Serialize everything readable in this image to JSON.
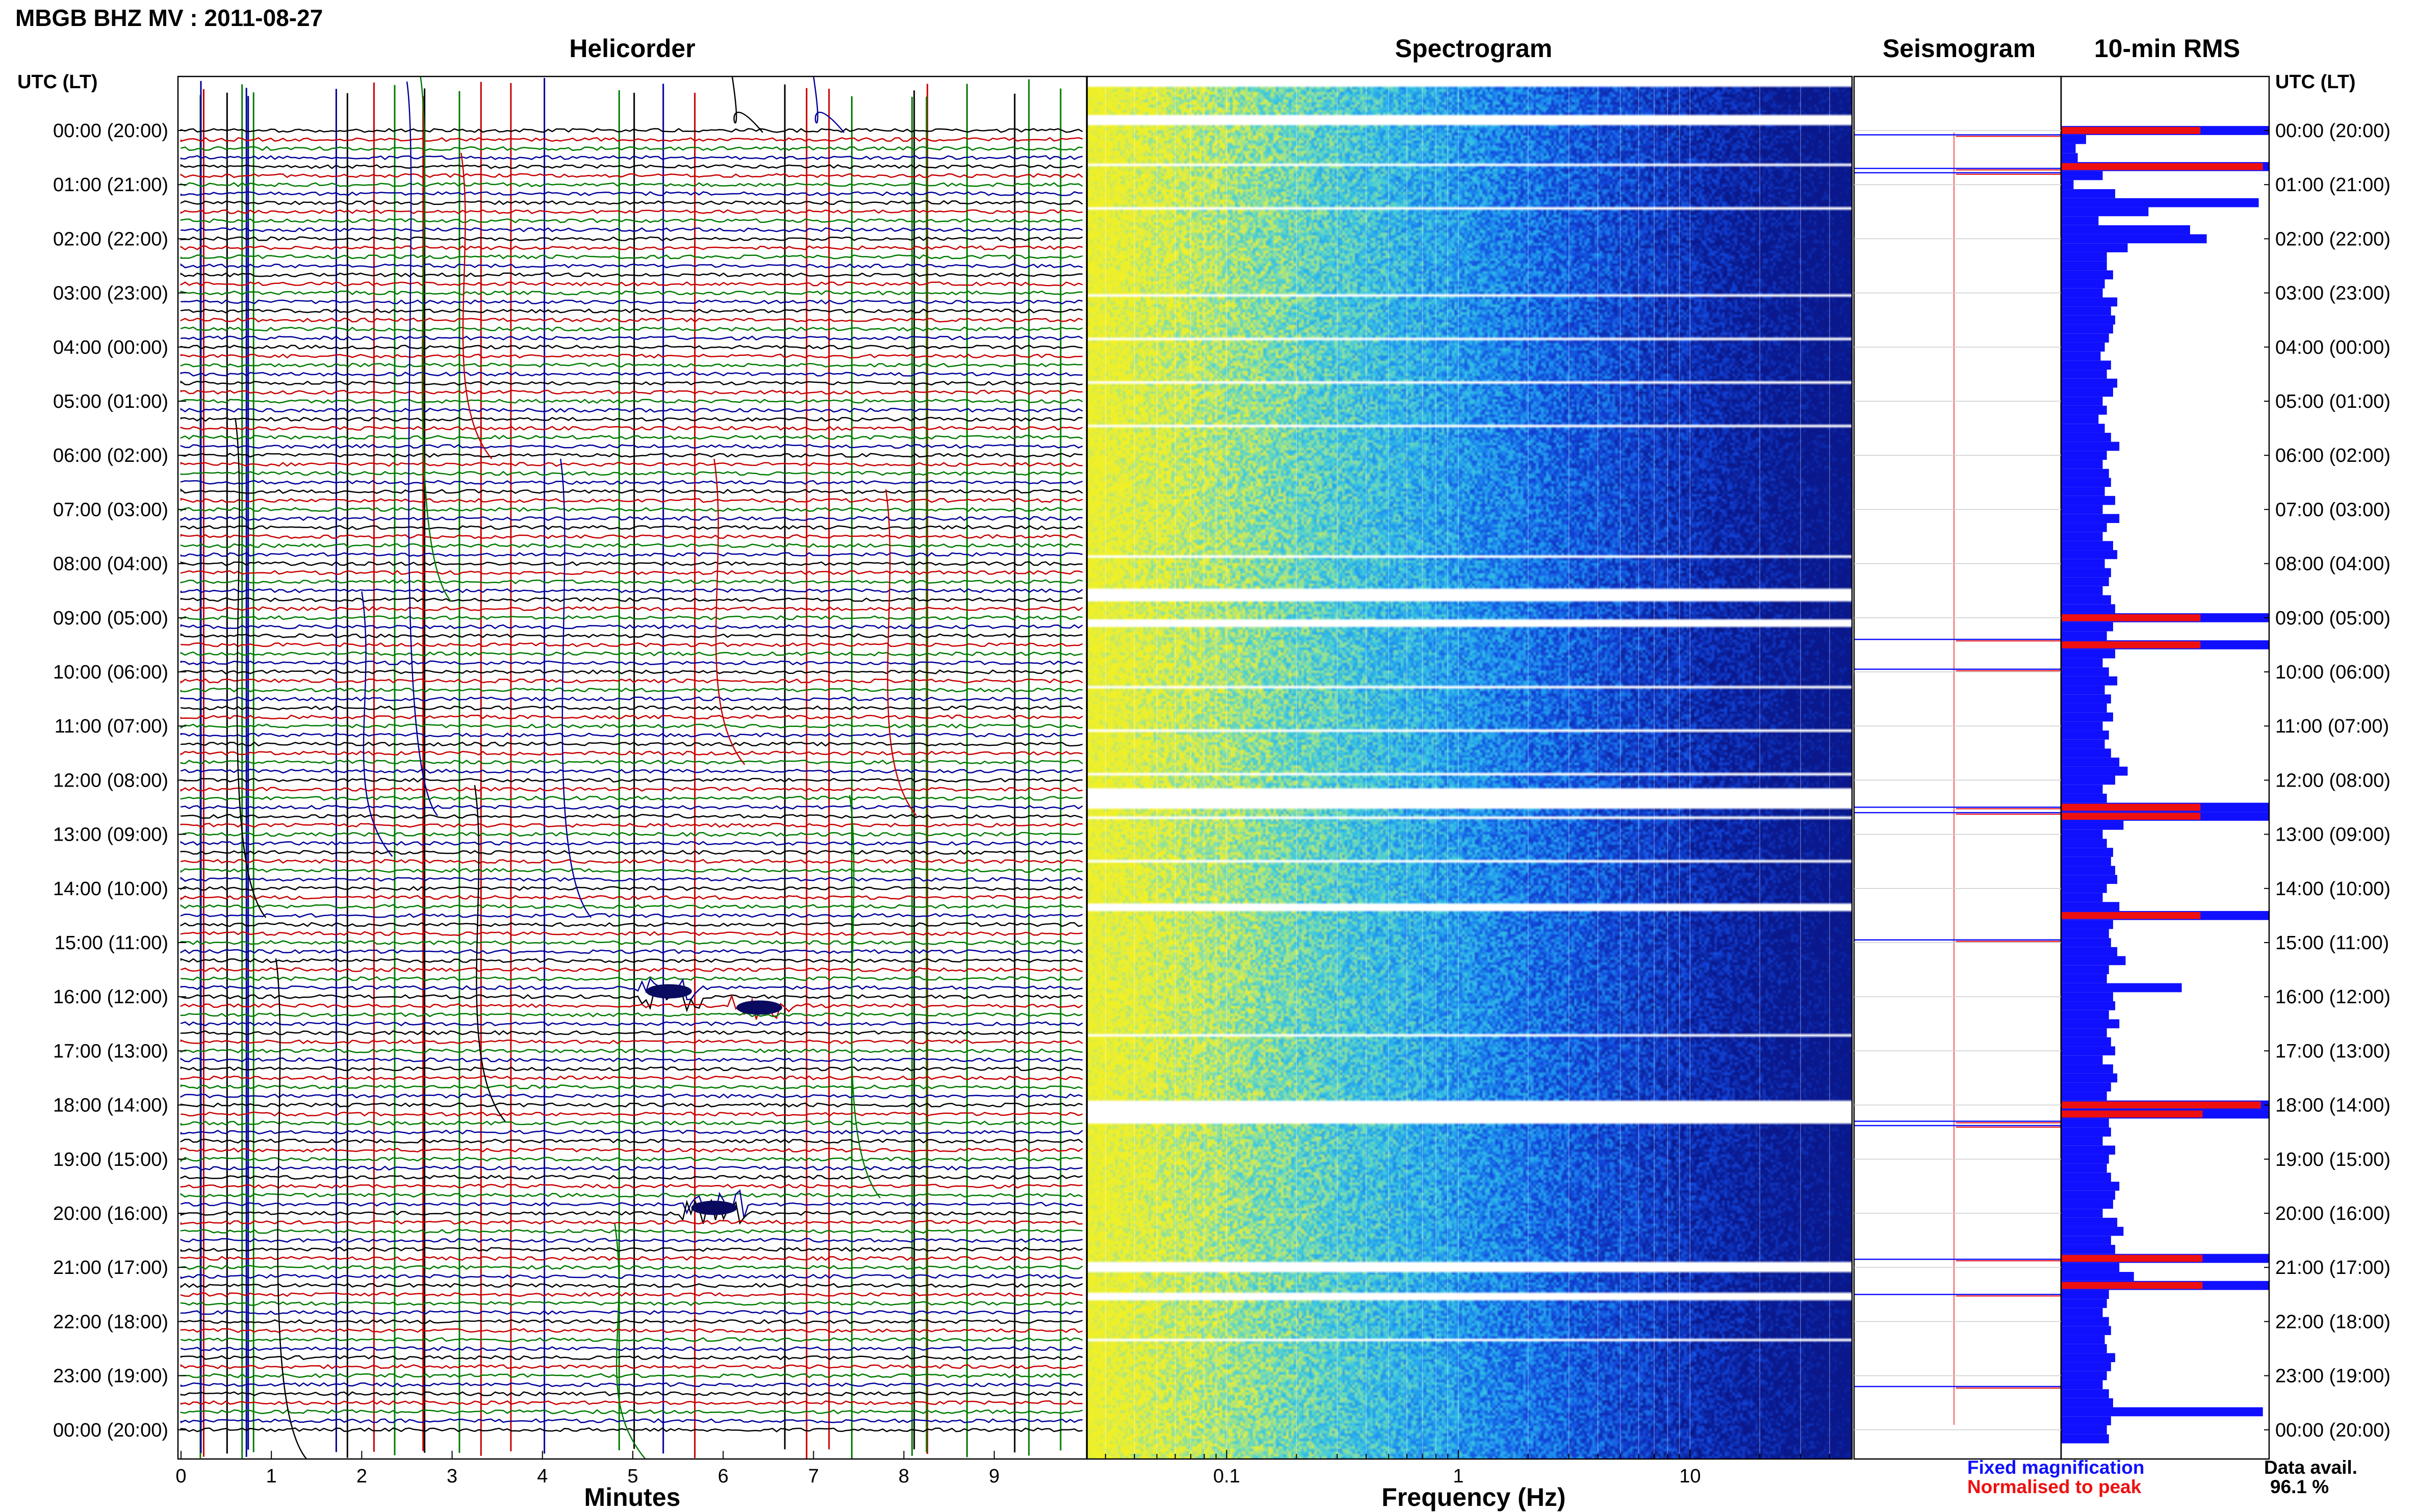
{
  "header": {
    "title": "MBGB BHZ MV : 2011-08-27",
    "panels": {
      "helicorder": "Helicorder",
      "spectrogram": "Spectrogram",
      "seismogram": "Seismogram",
      "rms": "10-min RMS"
    },
    "utc_label": "UTC (LT)"
  },
  "footer": {
    "helicorder_xlabel": "Minutes",
    "spectrogram_xlabel": "Frequency (Hz)",
    "legend_fixed": "Fixed magnification",
    "legend_normalised": "Normalised to peak",
    "data_avail_label": "Data avail.",
    "data_avail_value": "96.1 %"
  },
  "colors": {
    "trace_cycle": [
      "#000000",
      "#c80000",
      "#007a00",
      "#00009a"
    ],
    "fixed": "#1010ff",
    "normalised": "#ee1010",
    "spectrogram_low": "#0b1b96",
    "spectrogram_high": "#e8ee30"
  },
  "chart_data": [
    {
      "type": "line",
      "panel": "Helicorder",
      "xlabel": "Minutes",
      "x_ticks": [
        0,
        1,
        2,
        3,
        4,
        5,
        6,
        7,
        8,
        9
      ],
      "xlim": [
        0,
        10
      ],
      "time_labels": [
        "00:00 (20:00)",
        "01:00 (21:00)",
        "02:00 (22:00)",
        "03:00 (23:00)",
        "04:00 (00:00)",
        "05:00 (01:00)",
        "06:00 (02:00)",
        "07:00 (03:00)",
        "08:00 (04:00)",
        "09:00 (05:00)",
        "10:00 (06:00)",
        "11:00 (07:00)",
        "12:00 (08:00)",
        "13:00 (09:00)",
        "14:00 (10:00)",
        "15:00 (11:00)",
        "16:00 (12:00)",
        "17:00 (13:00)",
        "18:00 (14:00)",
        "19:00 (15:00)",
        "20:00 (16:00)",
        "21:00 (17:00)",
        "22:00 (18:00)",
        "23:00 (19:00)",
        "00:00 (20:00)"
      ],
      "traces_per_hour": 6,
      "events": [
        {
          "hour": 15.9,
          "minute": 5.4,
          "label": "burst"
        },
        {
          "hour": 16.2,
          "minute": 6.4,
          "label": "burst"
        },
        {
          "hour": 19.9,
          "minute": 5.9,
          "label": "burst"
        }
      ]
    },
    {
      "type": "heatmap",
      "panel": "Spectrogram",
      "xlabel": "Frequency (Hz)",
      "x_scale": "log",
      "x_ticks": [
        0.1,
        1,
        10
      ],
      "xlim": [
        0.025,
        50
      ],
      "energy_high_band_hz": [
        0.025,
        1.5
      ],
      "energy_low_band_hz": [
        3,
        50
      ]
    },
    {
      "type": "line",
      "panel": "Seismogram",
      "spike_hours": [
        0.08,
        0.7,
        0.78,
        9.4,
        9.95,
        12.5,
        12.6,
        14.95,
        18.3,
        18.38,
        20.85,
        21.5,
        23.2
      ]
    },
    {
      "type": "bar",
      "panel": "10-min RMS",
      "orientation": "horizontal",
      "series": [
        {
          "name": "Fixed magnification",
          "values": [
            1.0,
            0.12,
            0.07,
            0.08,
            1.0,
            0.2,
            0.06,
            0.26,
            0.95,
            0.42,
            0.18,
            0.62,
            0.7,
            0.32,
            0.22,
            0.22,
            0.25,
            0.21,
            0.2,
            0.27,
            0.24,
            0.26,
            0.25,
            0.23,
            0.21,
            0.19,
            0.24,
            0.22,
            0.27,
            0.25,
            0.2,
            0.22,
            0.18,
            0.21,
            0.24,
            0.28,
            0.22,
            0.2,
            0.23,
            0.24,
            0.21,
            0.26,
            0.2,
            0.28,
            0.22,
            0.2,
            0.25,
            0.27,
            0.21,
            0.24,
            0.23,
            0.2,
            0.24,
            0.26,
            1.0,
            0.25,
            0.22,
            1.0,
            0.26,
            0.2,
            0.23,
            0.27,
            0.21,
            0.24,
            0.22,
            0.25,
            0.2,
            0.23,
            0.21,
            0.24,
            0.28,
            0.32,
            0.26,
            0.2,
            0.22,
            1.0,
            1.0,
            0.3,
            0.2,
            0.22,
            0.25,
            0.24,
            0.26,
            0.27,
            0.22,
            0.2,
            0.28,
            1.0,
            0.25,
            0.23,
            0.24,
            0.27,
            0.31,
            0.23,
            0.22,
            0.58,
            0.25,
            0.26,
            0.23,
            0.28,
            0.22,
            0.24,
            0.26,
            0.2,
            0.25,
            0.27,
            0.24,
            0.22,
            1.0,
            1.0,
            0.23,
            0.24,
            0.2,
            0.26,
            0.23,
            0.22,
            0.24,
            0.28,
            0.26,
            0.25,
            0.2,
            0.27,
            0.3,
            0.24,
            0.26,
            1.0,
            0.28,
            0.35,
            1.0,
            0.23,
            0.22,
            0.2,
            0.23,
            0.24,
            0.21,
            0.22,
            0.26,
            0.24,
            0.22,
            0.2,
            0.23,
            0.25,
            0.97,
            0.24,
            0.22,
            0.23
          ]
        },
        {
          "name": "Normalised to peak",
          "values": [
            0.67,
            0.0,
            0.0,
            0.0,
            0.97,
            0.0,
            0.0,
            0.0,
            0.0,
            0.0,
            0.0,
            0.0,
            0.0,
            0.0,
            0.0,
            0.0,
            0.0,
            0.0,
            0.0,
            0.0,
            0.0,
            0.0,
            0.0,
            0.0,
            0.0,
            0.0,
            0.0,
            0.0,
            0.0,
            0.0,
            0.0,
            0.0,
            0.0,
            0.0,
            0.0,
            0.0,
            0.0,
            0.0,
            0.0,
            0.0,
            0.0,
            0.0,
            0.0,
            0.0,
            0.0,
            0.0,
            0.0,
            0.0,
            0.0,
            0.0,
            0.0,
            0.0,
            0.0,
            0.0,
            0.67,
            0.0,
            0.0,
            0.67,
            0.0,
            0.0,
            0.0,
            0.0,
            0.0,
            0.0,
            0.0,
            0.0,
            0.0,
            0.0,
            0.0,
            0.0,
            0.0,
            0.0,
            0.0,
            0.0,
            0.0,
            0.67,
            0.67,
            0.0,
            0.0,
            0.0,
            0.0,
            0.0,
            0.0,
            0.0,
            0.0,
            0.0,
            0.0,
            0.67,
            0.0,
            0.0,
            0.0,
            0.0,
            0.0,
            0.0,
            0.0,
            0.0,
            0.0,
            0.0,
            0.0,
            0.0,
            0.0,
            0.0,
            0.0,
            0.0,
            0.0,
            0.0,
            0.0,
            0.0,
            0.96,
            0.68,
            0.0,
            0.0,
            0.0,
            0.0,
            0.0,
            0.0,
            0.0,
            0.0,
            0.0,
            0.0,
            0.0,
            0.0,
            0.0,
            0.0,
            0.0,
            0.68,
            0.0,
            0.0,
            0.68,
            0.0,
            0.0,
            0.0,
            0.0,
            0.0,
            0.0,
            0.0,
            0.0,
            0.0,
            0.0,
            0.0,
            0.0,
            0.0,
            0.0,
            0.0,
            0.0,
            0.0
          ]
        }
      ]
    }
  ]
}
